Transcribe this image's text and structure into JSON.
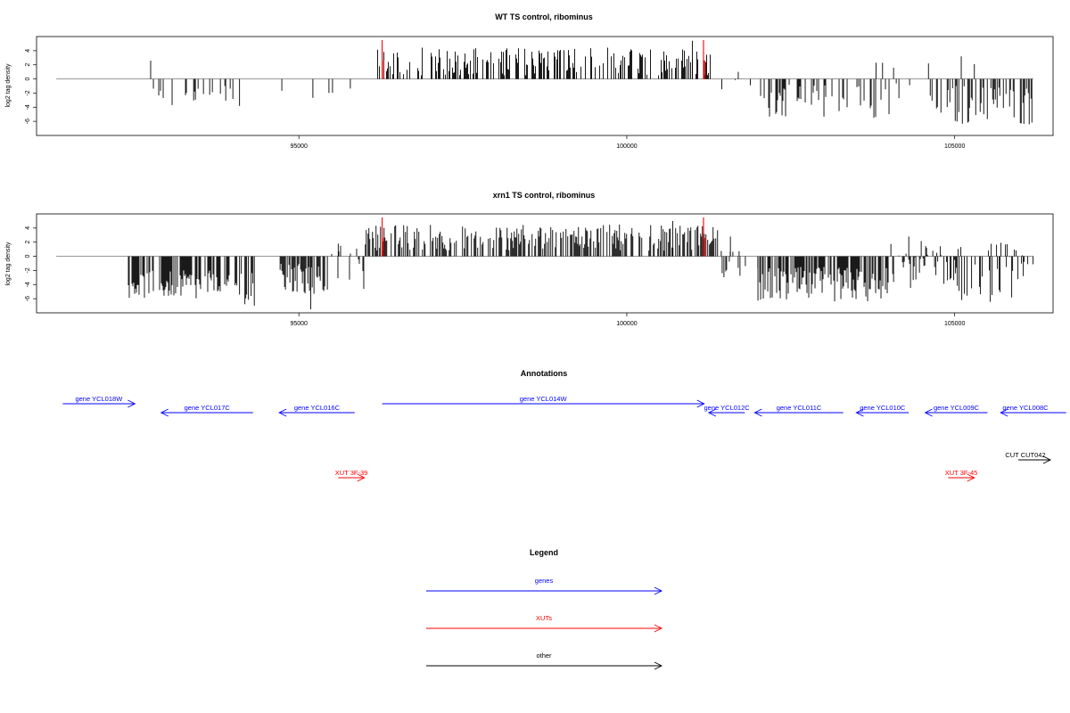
{
  "chart_data": [
    {
      "type": "bar",
      "title": "WT TS control, ribominus",
      "xlabel": "",
      "ylabel": "log2 tag density",
      "xlim": [
        91000,
        106500
      ],
      "ylim": [
        -8,
        6
      ],
      "x_ticks": [
        95000,
        100000,
        105000
      ],
      "y_ticks": [
        -6,
        -4,
        -2,
        0,
        2,
        4
      ],
      "baseline": {
        "x": [
          91300,
          106200
        ],
        "y": 0
      },
      "segments": [
        {
          "x": [
            92700,
            93300
          ],
          "y": [
            -4.2,
            -1.0
          ],
          "density": 0.22
        },
        {
          "x": [
            93300,
            94000
          ],
          "y": [
            -3.8,
            -0.8
          ],
          "density": 0.25
        },
        {
          "x": [
            94000,
            94200
          ],
          "y": [
            -4.6,
            -1.5
          ],
          "density": 0.3
        },
        {
          "x": [
            94400,
            95200
          ],
          "y": [
            -3.5,
            -0.5
          ],
          "density": 0.05
        },
        {
          "x": [
            95200,
            95900
          ],
          "y": [
            -3.0,
            -0.5
          ],
          "density": 0.05
        },
        {
          "x": [
            96200,
            101300
          ],
          "y": [
            0.5,
            4.5
          ],
          "density": 0.45
        },
        {
          "x": [
            101300,
            102000
          ],
          "y": [
            -2.5,
            1.0
          ],
          "density": 0.06
        },
        {
          "x": [
            102000,
            104000
          ],
          "y": [
            -5.5,
            -0.8
          ],
          "density": 0.35
        },
        {
          "x": [
            104000,
            104600
          ],
          "y": [
            -3.5,
            2.0
          ],
          "density": 0.08
        },
        {
          "x": [
            104600,
            106200
          ],
          "y": [
            -6.5,
            -0.8
          ],
          "density": 0.38
        }
      ],
      "spikes": [
        {
          "x": 92740,
          "y": 2.6
        },
        {
          "x": 103800,
          "y": 2.3
        },
        {
          "x": 103900,
          "y": 2.3
        },
        {
          "x": 104600,
          "y": 2.2
        },
        {
          "x": 105300,
          "y": 2.1
        },
        {
          "x": 105100,
          "y": 3.2
        },
        {
          "x": 101700,
          "y": 1.0
        },
        {
          "x": 101000,
          "y": 5.4
        }
      ],
      "markers": [
        {
          "x": 96270,
          "y": 5.5,
          "color": "#ff0000"
        },
        {
          "x": 101170,
          "y": 5.5,
          "color": "#ff0000"
        }
      ]
    },
    {
      "type": "bar",
      "title": "xrn1 TS control, ribominus",
      "xlabel": "",
      "ylabel": "log2 tag density",
      "xlim": [
        91000,
        106500
      ],
      "ylim": [
        -8,
        6
      ],
      "x_ticks": [
        95000,
        100000,
        105000
      ],
      "y_ticks": [
        -6,
        -4,
        -2,
        0,
        2,
        4
      ],
      "baseline": {
        "x": [
          91300,
          106200
        ],
        "y": 0
      },
      "segments": [
        {
          "x": [
            92400,
            94000
          ],
          "y": [
            -6.0,
            -2.0
          ],
          "density": 0.7
        },
        {
          "x": [
            94000,
            94300
          ],
          "y": [
            -6.8,
            -2.0
          ],
          "density": 0.5
        },
        {
          "x": [
            94700,
            95500
          ],
          "y": [
            -5.5,
            -1.0
          ],
          "density": 0.5
        },
        {
          "x": [
            95500,
            96000
          ],
          "y": [
            -5.0,
            1.5
          ],
          "density": 0.3
        },
        {
          "x": [
            96000,
            101400
          ],
          "y": [
            0.8,
            4.5
          ],
          "density": 0.55
        },
        {
          "x": [
            101400,
            102000
          ],
          "y": [
            -3.0,
            0.8
          ],
          "density": 0.25
        },
        {
          "x": [
            102000,
            104000
          ],
          "y": [
            -6.5,
            -1.5
          ],
          "density": 0.75
        },
        {
          "x": [
            104000,
            104700
          ],
          "y": [
            -5.5,
            2.5
          ],
          "density": 0.5
        },
        {
          "x": [
            104700,
            106200
          ],
          "y": [
            -6.5,
            2.0
          ],
          "density": 0.55
        }
      ],
      "spikes": [
        {
          "x": 95180,
          "y": -7.5
        },
        {
          "x": 94320,
          "y": -7.0
        },
        {
          "x": 95600,
          "y": 1.8
        },
        {
          "x": 101580,
          "y": 2.8
        },
        {
          "x": 100700,
          "y": 5.0
        },
        {
          "x": 104300,
          "y": 2.8
        }
      ],
      "markers": [
        {
          "x": 96270,
          "y": 5.5,
          "color": "#ff0000"
        },
        {
          "x": 101170,
          "y": 5.5,
          "color": "#ff0000"
        }
      ]
    }
  ],
  "annotations": {
    "title": "Annotations",
    "items": [
      {
        "label": "gene YCL018W",
        "start": 91400,
        "end": 92500,
        "row": 0,
        "dir": "+",
        "color": "#0000ff"
      },
      {
        "label": "gene YCL017C",
        "start": 92900,
        "end": 94300,
        "row": 1,
        "dir": "-",
        "color": "#0000ff"
      },
      {
        "label": "gene YCL016C",
        "start": 94700,
        "end": 95850,
        "row": 1,
        "dir": "-",
        "color": "#0000ff"
      },
      {
        "label": "gene YCL014W",
        "start": 96270,
        "end": 101180,
        "row": 0,
        "dir": "+",
        "color": "#0000ff"
      },
      {
        "label": "gene YCL012C",
        "start": 101250,
        "end": 101800,
        "row": 1,
        "dir": "-",
        "color": "#0000ff"
      },
      {
        "label": "gene YCL011C",
        "start": 101950,
        "end": 103300,
        "row": 1,
        "dir": "-",
        "color": "#0000ff"
      },
      {
        "label": "gene YCL010C",
        "start": 103500,
        "end": 104300,
        "row": 1,
        "dir": "-",
        "color": "#0000ff"
      },
      {
        "label": "gene YCL009C",
        "start": 104550,
        "end": 105500,
        "row": 1,
        "dir": "-",
        "color": "#0000ff"
      },
      {
        "label": "gene YCL008C",
        "start": 105700,
        "end": 106700,
        "row": 1,
        "dir": "-",
        "color": "#0000ff"
      },
      {
        "label": "CUT CUT042",
        "start": 105970,
        "end": 106460,
        "row": 2,
        "dir": "+",
        "color": "#000000"
      },
      {
        "label": "XUT 3F-39",
        "start": 95600,
        "end": 96000,
        "row": 3,
        "dir": "+",
        "color": "#ff0000"
      },
      {
        "label": "XUT 3F-45",
        "start": 104900,
        "end": 105300,
        "row": 3,
        "dir": "+",
        "color": "#ff0000"
      }
    ]
  },
  "legend": {
    "title": "Legend",
    "items": [
      {
        "label": "genes",
        "color": "#0000ff"
      },
      {
        "label": "XUTs",
        "color": "#ff0000"
      },
      {
        "label": "other",
        "color": "#000000"
      }
    ]
  }
}
